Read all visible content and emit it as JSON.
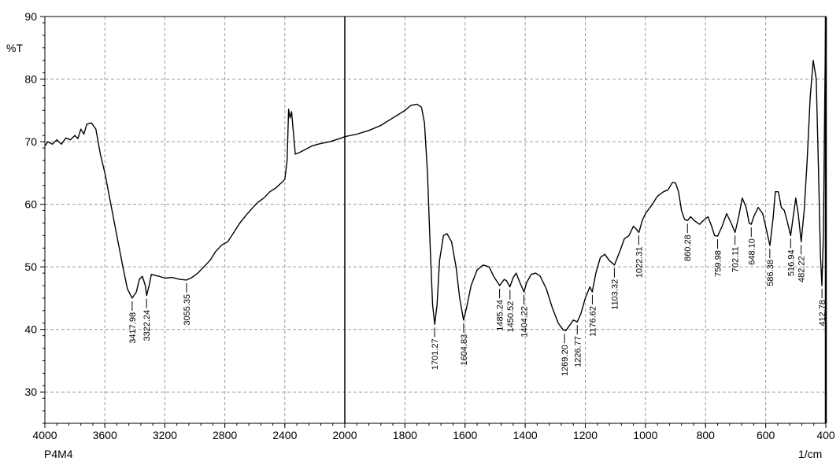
{
  "chart_data": {
    "type": "line",
    "title": "",
    "xlabel": "1/cm",
    "ylabel": "%T",
    "sample_label": "P4M4",
    "xlim": [
      4000,
      400
    ],
    "ylim": [
      25,
      90
    ],
    "x_ticks": [
      4000,
      3600,
      3200,
      2800,
      2400,
      2000,
      1800,
      1600,
      1400,
      1200,
      1000,
      800,
      600,
      400
    ],
    "y_ticks": [
      30,
      40,
      50,
      60,
      70,
      80,
      90
    ],
    "grid": true,
    "colors": {
      "line": "#000000",
      "grid": "#9a9a9a"
    },
    "series": [
      {
        "name": "",
        "points": [
          [
            4000,
            69.3
          ],
          [
            3980,
            70.0
          ],
          [
            3950,
            69.6
          ],
          [
            3920,
            70.3
          ],
          [
            3890,
            69.6
          ],
          [
            3860,
            70.6
          ],
          [
            3830,
            70.3
          ],
          [
            3800,
            71.0
          ],
          [
            3780,
            70.5
          ],
          [
            3760,
            72.0
          ],
          [
            3740,
            71.2
          ],
          [
            3720,
            72.8
          ],
          [
            3690,
            73.0
          ],
          [
            3660,
            72.0
          ],
          [
            3630,
            68.0
          ],
          [
            3600,
            65.0
          ],
          [
            3560,
            60.0
          ],
          [
            3520,
            55.0
          ],
          [
            3480,
            50.0
          ],
          [
            3450,
            46.5
          ],
          [
            3418,
            45.0
          ],
          [
            3390,
            46.0
          ],
          [
            3370,
            48.0
          ],
          [
            3350,
            48.5
          ],
          [
            3330,
            47.0
          ],
          [
            3322,
            45.4
          ],
          [
            3305,
            47.0
          ],
          [
            3290,
            48.8
          ],
          [
            3260,
            48.6
          ],
          [
            3240,
            48.5
          ],
          [
            3200,
            48.2
          ],
          [
            3150,
            48.3
          ],
          [
            3100,
            48.0
          ],
          [
            3055,
            47.9
          ],
          [
            3020,
            48.3
          ],
          [
            2980,
            49.0
          ],
          [
            2940,
            50.0
          ],
          [
            2900,
            51.0
          ],
          [
            2860,
            52.5
          ],
          [
            2820,
            53.5
          ],
          [
            2780,
            54.0
          ],
          [
            2740,
            55.5
          ],
          [
            2700,
            57.0
          ],
          [
            2660,
            58.2
          ],
          [
            2620,
            59.3
          ],
          [
            2580,
            60.3
          ],
          [
            2540,
            61.0
          ],
          [
            2500,
            62.0
          ],
          [
            2460,
            62.6
          ],
          [
            2420,
            63.5
          ],
          [
            2400,
            64.0
          ],
          [
            2385,
            67.0
          ],
          [
            2375,
            75.2
          ],
          [
            2365,
            73.8
          ],
          [
            2355,
            74.8
          ],
          [
            2345,
            72.0
          ],
          [
            2330,
            68.0
          ],
          [
            2300,
            68.3
          ],
          [
            2260,
            68.8
          ],
          [
            2220,
            69.3
          ],
          [
            2180,
            69.6
          ],
          [
            2140,
            69.8
          ],
          [
            2100,
            70.0
          ],
          [
            2060,
            70.3
          ],
          [
            2020,
            70.6
          ],
          [
            2000,
            70.8
          ],
          [
            1960,
            71.2
          ],
          [
            1920,
            71.8
          ],
          [
            1880,
            72.6
          ],
          [
            1850,
            73.5
          ],
          [
            1820,
            74.4
          ],
          [
            1800,
            75.0
          ],
          [
            1780,
            75.8
          ],
          [
            1760,
            76.0
          ],
          [
            1745,
            75.5
          ],
          [
            1735,
            73.0
          ],
          [
            1725,
            65.0
          ],
          [
            1715,
            52.0
          ],
          [
            1708,
            44.0
          ],
          [
            1701,
            40.8
          ],
          [
            1693,
            44.0
          ],
          [
            1685,
            51.0
          ],
          [
            1672,
            55.0
          ],
          [
            1660,
            55.3
          ],
          [
            1645,
            54.0
          ],
          [
            1630,
            50.0
          ],
          [
            1618,
            45.0
          ],
          [
            1605,
            41.5
          ],
          [
            1595,
            43.5
          ],
          [
            1580,
            47.0
          ],
          [
            1560,
            49.5
          ],
          [
            1540,
            50.3
          ],
          [
            1520,
            50.0
          ],
          [
            1505,
            48.5
          ],
          [
            1485,
            47.0
          ],
          [
            1470,
            48.0
          ],
          [
            1462,
            47.8
          ],
          [
            1451,
            46.8
          ],
          [
            1440,
            48.3
          ],
          [
            1430,
            49.0
          ],
          [
            1418,
            47.5
          ],
          [
            1404,
            46.0
          ],
          [
            1395,
            47.5
          ],
          [
            1380,
            48.8
          ],
          [
            1365,
            49.0
          ],
          [
            1350,
            48.5
          ],
          [
            1330,
            46.5
          ],
          [
            1310,
            43.5
          ],
          [
            1290,
            41.0
          ],
          [
            1275,
            40.0
          ],
          [
            1265,
            39.8
          ],
          [
            1250,
            40.8
          ],
          [
            1240,
            41.5
          ],
          [
            1227,
            41.2
          ],
          [
            1215,
            42.5
          ],
          [
            1200,
            45.0
          ],
          [
            1185,
            46.8
          ],
          [
            1177,
            46.0
          ],
          [
            1165,
            49.0
          ],
          [
            1150,
            51.5
          ],
          [
            1135,
            52.0
          ],
          [
            1120,
            51.0
          ],
          [
            1103,
            50.3
          ],
          [
            1085,
            52.5
          ],
          [
            1070,
            54.5
          ],
          [
            1055,
            55.0
          ],
          [
            1040,
            56.5
          ],
          [
            1030,
            56.0
          ],
          [
            1022,
            55.5
          ],
          [
            1010,
            57.5
          ],
          [
            1000,
            58.5
          ],
          [
            980,
            59.8
          ],
          [
            960,
            61.3
          ],
          [
            940,
            62.0
          ],
          [
            925,
            62.3
          ],
          [
            910,
            63.5
          ],
          [
            900,
            63.4
          ],
          [
            890,
            62.0
          ],
          [
            880,
            59.0
          ],
          [
            870,
            57.6
          ],
          [
            860,
            57.4
          ],
          [
            850,
            58.0
          ],
          [
            835,
            57.3
          ],
          [
            820,
            56.8
          ],
          [
            805,
            57.5
          ],
          [
            792,
            58.0
          ],
          [
            780,
            56.5
          ],
          [
            770,
            55.0
          ],
          [
            760,
            54.9
          ],
          [
            745,
            56.5
          ],
          [
            730,
            58.5
          ],
          [
            715,
            57.0
          ],
          [
            702,
            55.5
          ],
          [
            690,
            58.0
          ],
          [
            678,
            61.0
          ],
          [
            665,
            59.5
          ],
          [
            655,
            57.0
          ],
          [
            648,
            56.8
          ],
          [
            640,
            58.0
          ],
          [
            625,
            59.5
          ],
          [
            610,
            58.5
          ],
          [
            598,
            56.0
          ],
          [
            586,
            53.4
          ],
          [
            575,
            58.0
          ],
          [
            568,
            62.0
          ],
          [
            558,
            62.0
          ],
          [
            548,
            59.5
          ],
          [
            538,
            59.0
          ],
          [
            527,
            57.0
          ],
          [
            517,
            55.0
          ],
          [
            510,
            57.5
          ],
          [
            500,
            61.0
          ],
          [
            492,
            58.5
          ],
          [
            482,
            54.0
          ],
          [
            472,
            59.0
          ],
          [
            462,
            67.0
          ],
          [
            452,
            77.0
          ],
          [
            442,
            83.0
          ],
          [
            432,
            80.0
          ],
          [
            424,
            65.0
          ],
          [
            418,
            52.0
          ],
          [
            413,
            47.0
          ],
          [
            408,
            55.0
          ],
          [
            404,
            75.0
          ],
          [
            401,
            88.0
          ]
        ]
      }
    ],
    "annotations": [
      {
        "label": "3417.98",
        "x": 3417.98,
        "y": 45.0
      },
      {
        "label": "3322.24",
        "x": 3322.24,
        "y": 45.4
      },
      {
        "label": "3055.35",
        "x": 3055.35,
        "y": 47.9
      },
      {
        "label": "1701.27",
        "x": 1701.27,
        "y": 40.8
      },
      {
        "label": "1604.83",
        "x": 1604.83,
        "y": 41.5
      },
      {
        "label": "1485.24",
        "x": 1485.24,
        "y": 47.0
      },
      {
        "label": "1450.52",
        "x": 1450.52,
        "y": 46.8
      },
      {
        "label": "1404.22",
        "x": 1404.22,
        "y": 46.0
      },
      {
        "label": "1269.20",
        "x": 1269.2,
        "y": 39.8
      },
      {
        "label": "1226.77",
        "x": 1226.77,
        "y": 41.2
      },
      {
        "label": "1176.62",
        "x": 1176.62,
        "y": 46.0
      },
      {
        "label": "1103.32",
        "x": 1103.32,
        "y": 50.3
      },
      {
        "label": "1022.31",
        "x": 1022.31,
        "y": 55.5
      },
      {
        "label": "860.28",
        "x": 860.28,
        "y": 57.4
      },
      {
        "label": "759.98",
        "x": 759.98,
        "y": 54.9
      },
      {
        "label": "702.11",
        "x": 702.11,
        "y": 55.5
      },
      {
        "label": "648.10",
        "x": 648.1,
        "y": 56.8
      },
      {
        "label": "586.38",
        "x": 586.38,
        "y": 53.4
      },
      {
        "label": "516.94",
        "x": 516.94,
        "y": 55.0
      },
      {
        "label": "482.22",
        "x": 482.22,
        "y": 54.0
      },
      {
        "label": "412.78",
        "x": 412.78,
        "y": 47.0
      }
    ]
  }
}
